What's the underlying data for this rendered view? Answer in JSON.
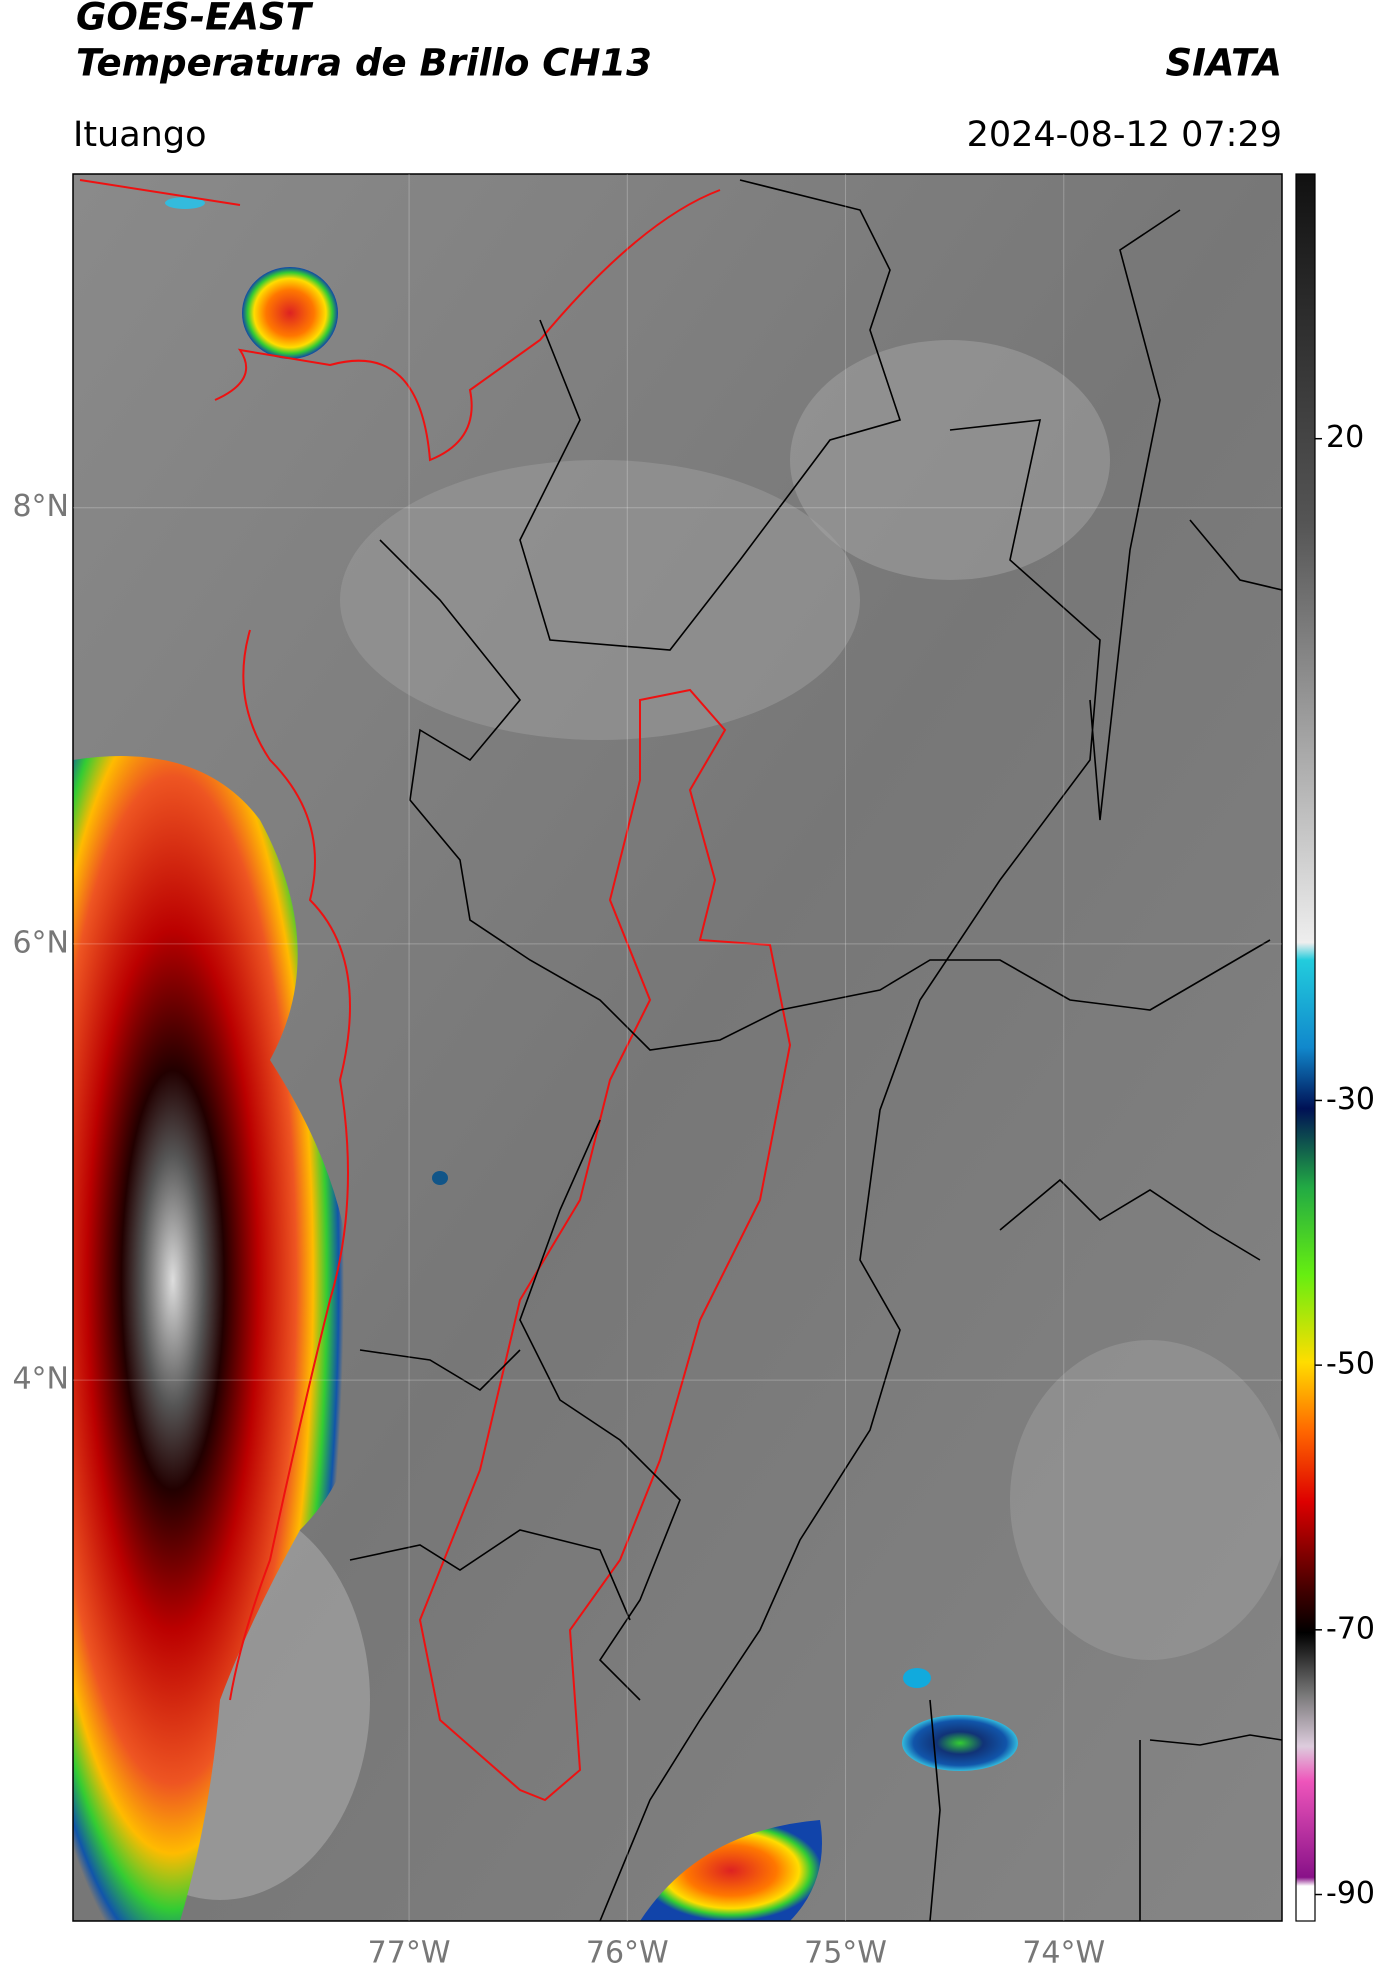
{
  "header": {
    "title_line1": "GOES-EAST",
    "title_line2": "Temperatura de Brillo CH13",
    "brand": "SIATA",
    "location": "Ituango",
    "timestamp": "2024-08-12 07:29"
  },
  "map": {
    "lat_range": [
      1.52,
      9.53
    ],
    "lon_range": [
      -78.54,
      -73.0
    ],
    "lat_ticks": [
      {
        "value": 8,
        "label": "8°N"
      },
      {
        "value": 6,
        "label": "6°N"
      },
      {
        "value": 4,
        "label": "4°N"
      }
    ],
    "lon_ticks": [
      {
        "value": -77,
        "label": "77°W"
      },
      {
        "value": -76,
        "label": "76°W"
      },
      {
        "value": -75,
        "label": "75°W"
      },
      {
        "value": -74,
        "label": "74°W"
      }
    ]
  },
  "colorbar": {
    "range": [
      -92,
      40
    ],
    "ticks": [
      20,
      -30,
      -50,
      -70,
      -90
    ]
  }
}
